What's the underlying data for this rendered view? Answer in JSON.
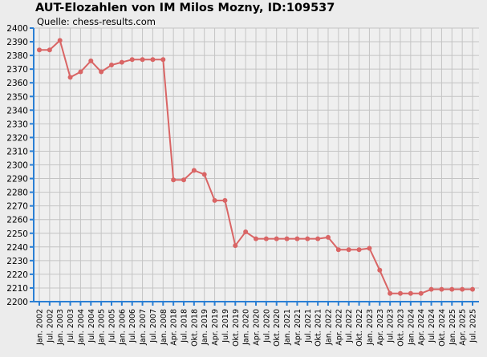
{
  "chart_data": {
    "type": "line",
    "title": "AUT-Elozahlen von IM Milos Mozny, ID:109537",
    "subtitle": "Quelle: chess-results.com",
    "xlabel": "",
    "ylabel": "",
    "ylim": [
      2200,
      2400
    ],
    "ytick_step": 10,
    "grid": true,
    "line_color": "#d96565",
    "axis_color": "#2a7fd4",
    "categories": [
      "Jan. 2002",
      "Jul. 2002",
      "Jan. 2003",
      "Jul. 2003",
      "Jan. 2004",
      "Jul. 2004",
      "Jan. 2005",
      "Jul. 2005",
      "Jan. 2006",
      "Jul. 2006",
      "Jan. 2007",
      "Jul. 2007",
      "Jan. 2008",
      "Apr. 2018",
      "Jul. 2018",
      "Okt. 2018",
      "Jan. 2019",
      "Apr. 2019",
      "Jul. 2019",
      "Okt. 2019",
      "Jan. 2020",
      "Apr. 2020",
      "Jul. 2020",
      "Okt. 2020",
      "Jan. 2021",
      "Apr. 2021",
      "Jul. 2021",
      "Okt. 2021",
      "Jan. 2022",
      "Apr. 2022",
      "Jul. 2022",
      "Okt. 2022",
      "Jan. 2023",
      "Apr. 2023",
      "Jul. 2023",
      "Okt. 2023",
      "Jan. 2024",
      "Apr. 2024",
      "Jul. 2024",
      "Okt. 2024",
      "Jan. 2025",
      "Apr. 2025",
      "Jul. 2025"
    ],
    "series": [
      {
        "values": [
          2384,
          2384,
          2391,
          2364,
          2368,
          2376,
          2368,
          2373,
          2375,
          2377,
          2377,
          2377,
          2377,
          2289,
          2289,
          2296,
          2293,
          2274,
          2274,
          2241,
          2251,
          2246,
          2246,
          2246,
          2246,
          2246,
          2246,
          2246,
          2247,
          2238,
          2238,
          2238,
          2239,
          2223,
          2206,
          2206,
          2206,
          2206,
          2209,
          2209,
          2209,
          2209,
          2209
        ]
      }
    ]
  }
}
